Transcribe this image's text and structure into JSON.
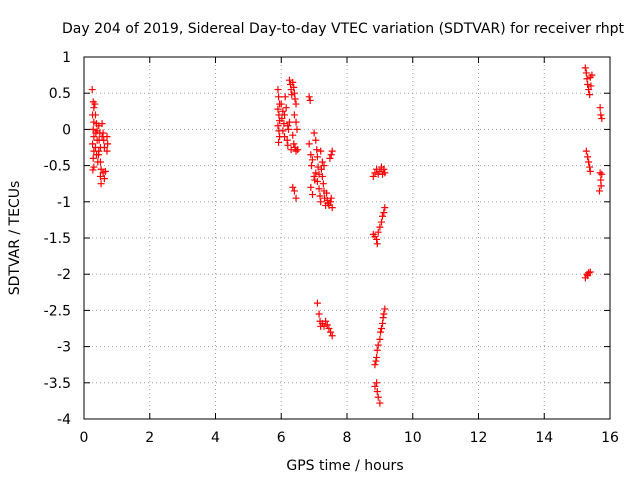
{
  "chart_data": {
    "type": "scatter",
    "title": "Day 204 of 2019, Sidereal Day-to-day VTEC variation (SDTVAR) for receiver rhpt",
    "xlabel": "GPS time / hours",
    "ylabel": "SDTVAR / TECUs",
    "xlim": [
      0,
      16
    ],
    "ylim": [
      -4,
      1
    ],
    "xticks": [
      0,
      2,
      4,
      6,
      8,
      10,
      12,
      14,
      16
    ],
    "yticks": [
      1,
      0.5,
      0,
      -0.5,
      -1,
      -1.5,
      -2,
      -2.5,
      -3,
      -3.5,
      -4
    ],
    "ytick_labels": [
      "1",
      "0.5",
      "0",
      "-0.5",
      "-1",
      "-1.5",
      "-2",
      "-2.5",
      "-3",
      "-3.5",
      "-4"
    ],
    "grid": true,
    "marker": "+",
    "series_color": "#ff0000",
    "series": [
      {
        "name": "SDTVAR",
        "points": [
          [
            0.25,
            0.55
          ],
          [
            0.28,
            0.38
          ],
          [
            0.3,
            0.3
          ],
          [
            0.26,
            0.2
          ],
          [
            0.3,
            0.1
          ],
          [
            0.28,
            0.0
          ],
          [
            0.3,
            -0.1
          ],
          [
            0.26,
            -0.2
          ],
          [
            0.3,
            -0.3
          ],
          [
            0.28,
            -0.4
          ],
          [
            0.3,
            -0.52
          ],
          [
            0.27,
            -0.56
          ],
          [
            0.33,
            0.35
          ],
          [
            0.35,
            0.2
          ],
          [
            0.38,
            0.08
          ],
          [
            0.36,
            -0.05
          ],
          [
            0.4,
            -0.15
          ],
          [
            0.35,
            -0.25
          ],
          [
            0.38,
            -0.35
          ],
          [
            0.42,
            -0.45
          ],
          [
            0.45,
            0.05
          ],
          [
            0.48,
            -0.05
          ],
          [
            0.46,
            -0.15
          ],
          [
            0.5,
            -0.25
          ],
          [
            0.44,
            -0.35
          ],
          [
            0.5,
            -0.45
          ],
          [
            0.52,
            -0.55
          ],
          [
            0.5,
            -0.65
          ],
          [
            0.52,
            -0.75
          ],
          [
            0.55,
            0.08
          ],
          [
            0.58,
            -0.05
          ],
          [
            0.6,
            -0.15
          ],
          [
            0.62,
            -0.25
          ],
          [
            0.58,
            -0.6
          ],
          [
            0.62,
            -0.68
          ],
          [
            0.65,
            -0.58
          ],
          [
            0.7,
            -0.1
          ],
          [
            0.72,
            -0.2
          ],
          [
            0.7,
            -0.3
          ],
          [
            0.4,
            -0.02
          ],
          [
            0.45,
            -0.3
          ],
          [
            0.55,
            -0.1
          ],
          [
            5.9,
            0.55
          ],
          [
            5.92,
            0.45
          ],
          [
            5.95,
            0.35
          ],
          [
            5.9,
            0.28
          ],
          [
            5.93,
            0.2
          ],
          [
            5.95,
            0.12
          ],
          [
            5.9,
            0.05
          ],
          [
            5.93,
            -0.02
          ],
          [
            5.95,
            -0.1
          ],
          [
            5.92,
            -0.18
          ],
          [
            6.0,
            0.35
          ],
          [
            6.05,
            0.25
          ],
          [
            6.02,
            0.15
          ],
          [
            6.08,
            0.08
          ],
          [
            6.05,
            -0.02
          ],
          [
            6.1,
            -0.1
          ],
          [
            6.12,
            0.45
          ],
          [
            6.15,
            0.3
          ],
          [
            6.1,
            0.2
          ],
          [
            6.18,
            -0.15
          ],
          [
            6.2,
            -0.22
          ],
          [
            6.22,
            0.0
          ],
          [
            6.25,
            0.1
          ],
          [
            6.2,
            0.05
          ],
          [
            6.25,
            0.68
          ],
          [
            6.28,
            0.62
          ],
          [
            6.3,
            0.55
          ],
          [
            6.32,
            0.48
          ],
          [
            6.35,
            0.65
          ],
          [
            6.38,
            0.58
          ],
          [
            6.4,
            0.5
          ],
          [
            6.42,
            0.42
          ],
          [
            6.45,
            0.35
          ],
          [
            6.4,
            0.2
          ],
          [
            6.45,
            0.1
          ],
          [
            6.48,
            0.0
          ],
          [
            6.35,
            -0.08
          ],
          [
            6.38,
            -0.2
          ],
          [
            6.42,
            -0.25
          ],
          [
            6.45,
            -0.3
          ],
          [
            6.5,
            -0.28
          ],
          [
            6.3,
            -0.28
          ],
          [
            6.35,
            -0.8
          ],
          [
            6.4,
            -0.85
          ],
          [
            6.45,
            -0.95
          ],
          [
            6.85,
            0.45
          ],
          [
            6.88,
            0.4
          ],
          [
            6.85,
            -0.2
          ],
          [
            6.9,
            -0.35
          ],
          [
            6.92,
            -0.5
          ],
          [
            6.95,
            -0.42
          ],
          [
            7.0,
            -0.65
          ],
          [
            7.02,
            -0.7
          ],
          [
            6.9,
            -0.8
          ],
          [
            6.95,
            -0.9
          ],
          [
            7.0,
            -0.05
          ],
          [
            7.05,
            -0.15
          ],
          [
            7.08,
            -0.28
          ],
          [
            7.1,
            -0.38
          ],
          [
            7.12,
            -0.52
          ],
          [
            7.15,
            -0.62
          ],
          [
            7.1,
            -0.72
          ],
          [
            7.15,
            -0.82
          ],
          [
            7.18,
            -0.92
          ],
          [
            7.2,
            -1.0
          ],
          [
            7.22,
            -0.55
          ],
          [
            7.25,
            -0.65
          ],
          [
            7.28,
            -0.75
          ],
          [
            7.3,
            -0.85
          ],
          [
            7.32,
            -0.95
          ],
          [
            7.35,
            -1.05
          ],
          [
            7.25,
            -0.45
          ],
          [
            7.3,
            -0.5
          ],
          [
            7.38,
            -0.88
          ],
          [
            7.4,
            -0.98
          ],
          [
            7.42,
            -1.02
          ],
          [
            7.45,
            -1.05
          ],
          [
            7.5,
            -1.0
          ],
          [
            7.52,
            -0.95
          ],
          [
            7.55,
            -1.08
          ],
          [
            7.48,
            -0.4
          ],
          [
            7.52,
            -0.35
          ],
          [
            7.55,
            -0.3
          ],
          [
            7.05,
            -0.6
          ],
          [
            7.2,
            -0.3
          ],
          [
            7.1,
            -2.4
          ],
          [
            7.15,
            -2.55
          ],
          [
            7.18,
            -2.65
          ],
          [
            7.2,
            -2.72
          ],
          [
            7.25,
            -2.68
          ],
          [
            7.3,
            -2.72
          ],
          [
            7.35,
            -2.65
          ],
          [
            7.4,
            -2.7
          ],
          [
            7.45,
            -2.75
          ],
          [
            7.5,
            -2.8
          ],
          [
            7.55,
            -2.85
          ],
          [
            8.8,
            -1.45
          ],
          [
            8.85,
            -1.48
          ],
          [
            8.9,
            -1.52
          ],
          [
            8.92,
            -1.58
          ],
          [
            8.95,
            -1.42
          ],
          [
            9.0,
            -1.35
          ],
          [
            9.05,
            -1.28
          ],
          [
            9.08,
            -1.2
          ],
          [
            9.12,
            -1.15
          ],
          [
            9.15,
            -1.08
          ],
          [
            8.8,
            -0.65
          ],
          [
            8.85,
            -0.6
          ],
          [
            8.9,
            -0.55
          ],
          [
            8.95,
            -0.62
          ],
          [
            9.0,
            -0.58
          ],
          [
            9.05,
            -0.52
          ],
          [
            9.08,
            -0.62
          ],
          [
            9.12,
            -0.55
          ],
          [
            9.15,
            -0.6
          ],
          [
            8.85,
            -3.55
          ],
          [
            8.9,
            -3.5
          ],
          [
            8.92,
            -3.62
          ],
          [
            8.95,
            -3.7
          ],
          [
            9.0,
            -3.78
          ],
          [
            8.85,
            -3.25
          ],
          [
            8.9,
            -3.15
          ],
          [
            8.92,
            -3.05
          ],
          [
            8.95,
            -2.98
          ],
          [
            9.0,
            -2.9
          ],
          [
            9.02,
            -2.8
          ],
          [
            9.05,
            -2.75
          ],
          [
            9.08,
            -2.68
          ],
          [
            9.1,
            -2.6
          ],
          [
            9.12,
            -2.55
          ],
          [
            9.15,
            -2.48
          ],
          [
            8.88,
            -3.2
          ],
          [
            15.25,
            0.85
          ],
          [
            15.28,
            0.78
          ],
          [
            15.3,
            0.7
          ],
          [
            15.32,
            0.62
          ],
          [
            15.35,
            0.55
          ],
          [
            15.38,
            0.48
          ],
          [
            15.4,
            0.72
          ],
          [
            15.42,
            0.6
          ],
          [
            15.45,
            0.75
          ],
          [
            15.28,
            -0.3
          ],
          [
            15.32,
            -0.38
          ],
          [
            15.35,
            -0.45
          ],
          [
            15.38,
            -0.52
          ],
          [
            15.4,
            -0.58
          ],
          [
            15.25,
            -2.05
          ],
          [
            15.3,
            -2.0
          ],
          [
            15.35,
            -1.98
          ],
          [
            15.4,
            -1.97
          ],
          [
            15.32,
            -2.02
          ],
          [
            15.7,
            0.3
          ],
          [
            15.72,
            0.2
          ],
          [
            15.75,
            0.15
          ],
          [
            15.7,
            -0.6
          ],
          [
            15.72,
            -0.7
          ],
          [
            15.68,
            -0.85
          ],
          [
            15.75,
            -0.62
          ],
          [
            15.73,
            -0.78
          ]
        ]
      }
    ]
  }
}
